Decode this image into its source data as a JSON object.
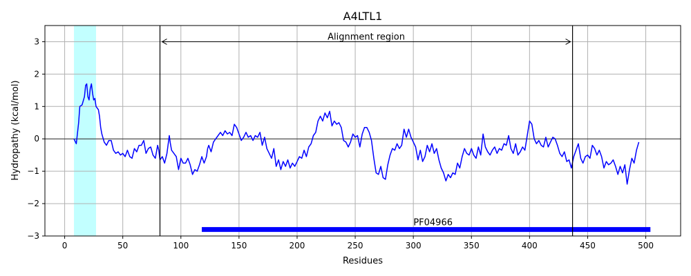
{
  "chart_data": {
    "type": "line",
    "title": "A4LTL1",
    "xlabel": "Residues",
    "ylabel": "Hydropathy (kcal/mol)",
    "xlim": [
      -17,
      530
    ],
    "ylim": [
      -3,
      3.5
    ],
    "xticks": [
      0,
      50,
      100,
      150,
      200,
      250,
      300,
      350,
      400,
      450,
      500
    ],
    "yticks": [
      -3,
      -2,
      -1,
      0,
      1,
      2,
      3
    ],
    "xtick_labels": [
      "0",
      "50",
      "100",
      "150",
      "200",
      "250",
      "300",
      "350",
      "400",
      "450",
      "500"
    ],
    "ytick_labels": [
      "−3",
      "−2",
      "−1",
      "0",
      "1",
      "2",
      "3"
    ],
    "grid": true,
    "colors": {
      "line": "#0000ff",
      "highlight": "#c2ffff",
      "domain_bar": "#0000ff",
      "grid": "#b0b0b0",
      "boundary": "#000000"
    },
    "highlight_region": [
      8,
      27
    ],
    "alignment_region": {
      "label": "Alignment region",
      "start": 82,
      "end": 437,
      "arrow_y": 3.0
    },
    "domain": {
      "label": "PF04966",
      "start": 118,
      "end": 504,
      "y": -2.8
    },
    "series": [
      {
        "points": [
          [
            8,
            0.0
          ],
          [
            10,
            -0.15
          ],
          [
            12,
            0.5
          ],
          [
            13,
            1.0
          ],
          [
            15,
            1.05
          ],
          [
            17,
            1.3
          ],
          [
            18,
            1.65
          ],
          [
            19,
            1.7
          ],
          [
            20,
            1.3
          ],
          [
            21,
            1.2
          ],
          [
            22,
            1.55
          ],
          [
            23,
            1.7
          ],
          [
            24,
            1.4
          ],
          [
            25,
            1.2
          ],
          [
            26,
            1.25
          ],
          [
            27,
            1.0
          ],
          [
            29,
            0.9
          ],
          [
            30,
            0.7
          ],
          [
            31,
            0.35
          ],
          [
            32,
            0.15
          ],
          [
            34,
            -0.1
          ],
          [
            36,
            -0.2
          ],
          [
            38,
            -0.05
          ],
          [
            40,
            -0.05
          ],
          [
            42,
            -0.35
          ],
          [
            44,
            -0.45
          ],
          [
            46,
            -0.4
          ],
          [
            48,
            -0.5
          ],
          [
            50,
            -0.45
          ],
          [
            52,
            -0.55
          ],
          [
            54,
            -0.35
          ],
          [
            56,
            -0.55
          ],
          [
            58,
            -0.6
          ],
          [
            60,
            -0.3
          ],
          [
            62,
            -0.4
          ],
          [
            64,
            -0.2
          ],
          [
            66,
            -0.2
          ],
          [
            68,
            -0.05
          ],
          [
            70,
            -0.45
          ],
          [
            72,
            -0.3
          ],
          [
            74,
            -0.25
          ],
          [
            76,
            -0.5
          ],
          [
            78,
            -0.6
          ],
          [
            80,
            -0.2
          ],
          [
            81,
            -0.35
          ],
          [
            82,
            -0.65
          ],
          [
            84,
            -0.55
          ],
          [
            86,
            -0.75
          ],
          [
            88,
            -0.45
          ],
          [
            90,
            0.1
          ],
          [
            91,
            -0.15
          ],
          [
            92,
            -0.35
          ],
          [
            94,
            -0.45
          ],
          [
            96,
            -0.55
          ],
          [
            98,
            -0.95
          ],
          [
            100,
            -0.6
          ],
          [
            102,
            -0.75
          ],
          [
            104,
            -0.75
          ],
          [
            106,
            -0.6
          ],
          [
            108,
            -0.8
          ],
          [
            110,
            -1.1
          ],
          [
            112,
            -0.95
          ],
          [
            114,
            -1.0
          ],
          [
            116,
            -0.8
          ],
          [
            118,
            -0.55
          ],
          [
            120,
            -0.75
          ],
          [
            122,
            -0.55
          ],
          [
            123,
            -0.3
          ],
          [
            124,
            -0.2
          ],
          [
            126,
            -0.4
          ],
          [
            128,
            -0.1
          ],
          [
            130,
            0.0
          ],
          [
            132,
            0.1
          ],
          [
            134,
            0.2
          ],
          [
            136,
            0.1
          ],
          [
            138,
            0.25
          ],
          [
            140,
            0.15
          ],
          [
            142,
            0.2
          ],
          [
            144,
            0.1
          ],
          [
            146,
            0.45
          ],
          [
            148,
            0.35
          ],
          [
            150,
            0.15
          ],
          [
            152,
            -0.05
          ],
          [
            154,
            0.05
          ],
          [
            156,
            0.2
          ],
          [
            158,
            0.05
          ],
          [
            160,
            0.1
          ],
          [
            162,
            -0.05
          ],
          [
            164,
            0.1
          ],
          [
            166,
            0.05
          ],
          [
            168,
            0.2
          ],
          [
            170,
            -0.2
          ],
          [
            172,
            0.05
          ],
          [
            174,
            -0.3
          ],
          [
            176,
            -0.45
          ],
          [
            178,
            -0.6
          ],
          [
            180,
            -0.3
          ],
          [
            182,
            -0.85
          ],
          [
            184,
            -0.65
          ],
          [
            186,
            -0.95
          ],
          [
            188,
            -0.7
          ],
          [
            190,
            -0.85
          ],
          [
            192,
            -0.65
          ],
          [
            194,
            -0.9
          ],
          [
            196,
            -0.75
          ],
          [
            198,
            -0.85
          ],
          [
            200,
            -0.7
          ],
          [
            202,
            -0.55
          ],
          [
            204,
            -0.6
          ],
          [
            206,
            -0.35
          ],
          [
            208,
            -0.55
          ],
          [
            210,
            -0.25
          ],
          [
            212,
            -0.15
          ],
          [
            214,
            0.1
          ],
          [
            216,
            0.2
          ],
          [
            218,
            0.55
          ],
          [
            220,
            0.7
          ],
          [
            222,
            0.55
          ],
          [
            224,
            0.8
          ],
          [
            226,
            0.65
          ],
          [
            228,
            0.85
          ],
          [
            230,
            0.4
          ],
          [
            232,
            0.55
          ],
          [
            234,
            0.45
          ],
          [
            236,
            0.5
          ],
          [
            238,
            0.35
          ],
          [
            240,
            -0.05
          ],
          [
            242,
            -0.1
          ],
          [
            244,
            -0.25
          ],
          [
            246,
            -0.1
          ],
          [
            248,
            0.15
          ],
          [
            250,
            0.05
          ],
          [
            252,
            0.1
          ],
          [
            254,
            -0.25
          ],
          [
            256,
            0.15
          ],
          [
            258,
            0.35
          ],
          [
            260,
            0.35
          ],
          [
            262,
            0.2
          ],
          [
            264,
            -0.05
          ],
          [
            266,
            -0.6
          ],
          [
            268,
            -1.05
          ],
          [
            270,
            -1.1
          ],
          [
            272,
            -0.85
          ],
          [
            274,
            -1.2
          ],
          [
            276,
            -1.25
          ],
          [
            278,
            -0.8
          ],
          [
            280,
            -0.5
          ],
          [
            282,
            -0.3
          ],
          [
            284,
            -0.35
          ],
          [
            286,
            -0.15
          ],
          [
            288,
            -0.3
          ],
          [
            290,
            -0.2
          ],
          [
            292,
            0.3
          ],
          [
            294,
            0.05
          ],
          [
            296,
            0.3
          ],
          [
            298,
            0.05
          ],
          [
            300,
            -0.1
          ],
          [
            302,
            -0.25
          ],
          [
            304,
            -0.65
          ],
          [
            306,
            -0.35
          ],
          [
            308,
            -0.7
          ],
          [
            310,
            -0.55
          ],
          [
            312,
            -0.2
          ],
          [
            314,
            -0.4
          ],
          [
            316,
            -0.15
          ],
          [
            318,
            -0.45
          ],
          [
            320,
            -0.3
          ],
          [
            322,
            -0.65
          ],
          [
            324,
            -0.9
          ],
          [
            326,
            -1.05
          ],
          [
            328,
            -1.3
          ],
          [
            330,
            -1.1
          ],
          [
            332,
            -1.2
          ],
          [
            334,
            -1.05
          ],
          [
            336,
            -1.1
          ],
          [
            338,
            -0.75
          ],
          [
            340,
            -0.9
          ],
          [
            342,
            -0.55
          ],
          [
            344,
            -0.3
          ],
          [
            346,
            -0.45
          ],
          [
            348,
            -0.5
          ],
          [
            350,
            -0.3
          ],
          [
            352,
            -0.5
          ],
          [
            354,
            -0.6
          ],
          [
            356,
            -0.25
          ],
          [
            358,
            -0.5
          ],
          [
            360,
            0.15
          ],
          [
            362,
            -0.25
          ],
          [
            364,
            -0.4
          ],
          [
            366,
            -0.5
          ],
          [
            368,
            -0.35
          ],
          [
            370,
            -0.25
          ],
          [
            372,
            -0.45
          ],
          [
            374,
            -0.3
          ],
          [
            376,
            -0.35
          ],
          [
            378,
            -0.15
          ],
          [
            380,
            -0.2
          ],
          [
            382,
            0.1
          ],
          [
            384,
            -0.3
          ],
          [
            386,
            -0.45
          ],
          [
            388,
            -0.15
          ],
          [
            390,
            -0.5
          ],
          [
            392,
            -0.4
          ],
          [
            394,
            -0.25
          ],
          [
            396,
            -0.35
          ],
          [
            398,
            0.1
          ],
          [
            400,
            0.55
          ],
          [
            402,
            0.45
          ],
          [
            404,
            0.0
          ],
          [
            406,
            -0.15
          ],
          [
            408,
            -0.05
          ],
          [
            410,
            -0.2
          ],
          [
            412,
            -0.25
          ],
          [
            414,
            0.05
          ],
          [
            416,
            -0.25
          ],
          [
            418,
            -0.1
          ],
          [
            420,
            0.05
          ],
          [
            422,
            0.0
          ],
          [
            424,
            -0.2
          ],
          [
            426,
            -0.45
          ],
          [
            428,
            -0.55
          ],
          [
            430,
            -0.4
          ],
          [
            432,
            -0.7
          ],
          [
            434,
            -0.65
          ],
          [
            436,
            -0.9
          ],
          [
            438,
            -0.55
          ],
          [
            440,
            -0.35
          ],
          [
            442,
            -0.15
          ],
          [
            444,
            -0.6
          ],
          [
            446,
            -0.75
          ],
          [
            448,
            -0.55
          ],
          [
            450,
            -0.5
          ],
          [
            452,
            -0.6
          ],
          [
            454,
            -0.2
          ],
          [
            456,
            -0.3
          ],
          [
            458,
            -0.5
          ],
          [
            460,
            -0.35
          ],
          [
            462,
            -0.55
          ],
          [
            464,
            -0.9
          ],
          [
            466,
            -0.7
          ],
          [
            468,
            -0.8
          ],
          [
            470,
            -0.75
          ],
          [
            472,
            -0.65
          ],
          [
            474,
            -0.85
          ],
          [
            476,
            -1.1
          ],
          [
            478,
            -0.85
          ],
          [
            480,
            -1.05
          ],
          [
            482,
            -0.8
          ],
          [
            484,
            -1.4
          ],
          [
            486,
            -0.95
          ],
          [
            488,
            -0.6
          ],
          [
            490,
            -0.75
          ],
          [
            492,
            -0.35
          ],
          [
            494,
            -0.1
          ]
        ]
      }
    ]
  }
}
